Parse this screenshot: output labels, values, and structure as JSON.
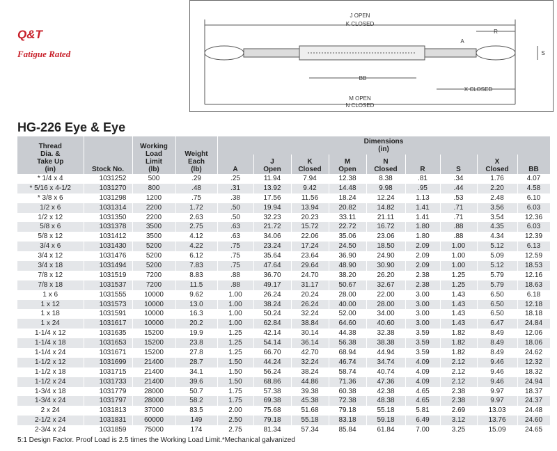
{
  "logo": {
    "brand": "Q&T",
    "tagline": "Fatigue Rated"
  },
  "diagram": {
    "labels": [
      "J OPEN",
      "K CLOSED",
      "R",
      "A",
      "S",
      "BB",
      "X CLOSED",
      "M OPEN",
      "N CLOSED"
    ]
  },
  "title": "HG-226 Eye & Eye",
  "table": {
    "group": [
      "Dimensions",
      "(in)"
    ],
    "columns": [
      [
        "Thread",
        "Dia. &",
        "Take Up",
        "(in)"
      ],
      [
        "Stock No."
      ],
      [
        "Working",
        "Load",
        "Limit",
        "(lb)"
      ],
      [
        "Weight",
        "Each",
        "(lb)"
      ],
      [
        "A"
      ],
      [
        "J",
        "Open"
      ],
      [
        "K",
        "Closed"
      ],
      [
        "M",
        "Open"
      ],
      [
        "N",
        "Closed"
      ],
      [
        "R"
      ],
      [
        "S"
      ],
      [
        "X",
        "Closed"
      ],
      [
        "BB"
      ]
    ],
    "rows": [
      [
        "* 1/4 x 4",
        "1031252",
        "500",
        ".29",
        ".25",
        "11.94",
        "7.94",
        "12.38",
        "8.38",
        ".81",
        ".34",
        "1.76",
        "4.07"
      ],
      [
        "* 5/16 x 4-1/2",
        "1031270",
        "800",
        ".48",
        ".31",
        "13.92",
        "9.42",
        "14.48",
        "9.98",
        ".95",
        ".44",
        "2.20",
        "4.58"
      ],
      [
        "* 3/8 x 6",
        "1031298",
        "1200",
        ".75",
        ".38",
        "17.56",
        "11.56",
        "18.24",
        "12.24",
        "1.13",
        ".53",
        "2.48",
        "6.10"
      ],
      [
        "1/2 x 6",
        "1031314",
        "2200",
        "1.72",
        ".50",
        "19.94",
        "13.94",
        "20.82",
        "14.82",
        "1.41",
        ".71",
        "3.56",
        "6.03"
      ],
      [
        "1/2 x 12",
        "1031350",
        "2200",
        "2.63",
        ".50",
        "32.23",
        "20.23",
        "33.11",
        "21.11",
        "1.41",
        ".71",
        "3.54",
        "12.36"
      ],
      [
        "5/8 x 6",
        "1031378",
        "3500",
        "2.75",
        ".63",
        "21.72",
        "15.72",
        "22.72",
        "16.72",
        "1.80",
        ".88",
        "4.35",
        "6.03"
      ],
      [
        "5/8 x 12",
        "1031412",
        "3500",
        "4.12",
        ".63",
        "34.06",
        "22.06",
        "35.06",
        "23.06",
        "1.80",
        ".88",
        "4.34",
        "12.39"
      ],
      [
        "3/4 x 6",
        "1031430",
        "5200",
        "4.22",
        ".75",
        "23.24",
        "17.24",
        "24.50",
        "18.50",
        "2.09",
        "1.00",
        "5.12",
        "6.13"
      ],
      [
        "3/4 x 12",
        "1031476",
        "5200",
        "6.12",
        ".75",
        "35.64",
        "23.64",
        "36.90",
        "24.90",
        "2.09",
        "1.00",
        "5.09",
        "12.59"
      ],
      [
        "3/4 x 18",
        "1031494",
        "5200",
        "7.83",
        ".75",
        "47.64",
        "29.64",
        "48.90",
        "30.90",
        "2.09",
        "1.00",
        "5.12",
        "18.53"
      ],
      [
        "7/8 x 12",
        "1031519",
        "7200",
        "8.83",
        ".88",
        "36.70",
        "24.70",
        "38.20",
        "26.20",
        "2.38",
        "1.25",
        "5.79",
        "12.16"
      ],
      [
        "7/8 x 18",
        "1031537",
        "7200",
        "11.5",
        ".88",
        "49.17",
        "31.17",
        "50.67",
        "32.67",
        "2.38",
        "1.25",
        "5.79",
        "18.63"
      ],
      [
        "1 x 6",
        "1031555",
        "10000",
        "9.62",
        "1.00",
        "26.24",
        "20.24",
        "28.00",
        "22.00",
        "3.00",
        "1.43",
        "6.50",
        "6.18"
      ],
      [
        "1 x 12",
        "1031573",
        "10000",
        "13.0",
        "1.00",
        "38.24",
        "26.24",
        "40.00",
        "28.00",
        "3.00",
        "1.43",
        "6.50",
        "12.18"
      ],
      [
        "1 x 18",
        "1031591",
        "10000",
        "16.3",
        "1.00",
        "50.24",
        "32.24",
        "52.00",
        "34.00",
        "3.00",
        "1.43",
        "6.50",
        "18.18"
      ],
      [
        "1 x 24",
        "1031617",
        "10000",
        "20.2",
        "1.00",
        "62.84",
        "38.84",
        "64.60",
        "40.60",
        "3.00",
        "1.43",
        "6.47",
        "24.84"
      ],
      [
        "1-1/4 x 12",
        "1031635",
        "15200",
        "19.9",
        "1.25",
        "42.14",
        "30.14",
        "44.38",
        "32.38",
        "3.59",
        "1.82",
        "8.49",
        "12.06"
      ],
      [
        "1-1/4 x 18",
        "1031653",
        "15200",
        "23.8",
        "1.25",
        "54.14",
        "36.14",
        "56.38",
        "38.38",
        "3.59",
        "1.82",
        "8.49",
        "18.06"
      ],
      [
        "1-1/4 x 24",
        "1031671",
        "15200",
        "27.8",
        "1.25",
        "66.70",
        "42.70",
        "68.94",
        "44.94",
        "3.59",
        "1.82",
        "8.49",
        "24.62"
      ],
      [
        "1-1/2 x 12",
        "1031699",
        "21400",
        "28.7",
        "1.50",
        "44.24",
        "32.24",
        "46.74",
        "34.74",
        "4.09",
        "2.12",
        "9.46",
        "12.32"
      ],
      [
        "1-1/2 x 18",
        "1031715",
        "21400",
        "34.1",
        "1.50",
        "56.24",
        "38.24",
        "58.74",
        "40.74",
        "4.09",
        "2.12",
        "9.46",
        "18.32"
      ],
      [
        "1-1/2 x 24",
        "1031733",
        "21400",
        "39.6",
        "1.50",
        "68.86",
        "44.86",
        "71.36",
        "47.36",
        "4.09",
        "2.12",
        "9.46",
        "24.94"
      ],
      [
        "1-3/4 x 18",
        "1031779",
        "28000",
        "50.7",
        "1.75",
        "57.38",
        "39.38",
        "60.38",
        "42.38",
        "4.65",
        "2.38",
        "9.97",
        "18.37"
      ],
      [
        "1-3/4 x 24",
        "1031797",
        "28000",
        "58.2",
        "1.75",
        "69.38",
        "45.38",
        "72.38",
        "48.38",
        "4.65",
        "2.38",
        "9.97",
        "24.37"
      ],
      [
        "2 x 24",
        "1031813",
        "37000",
        "83.5",
        "2.00",
        "75.68",
        "51.68",
        "79.18",
        "55.18",
        "5.81",
        "2.69",
        "13.03",
        "24.48"
      ],
      [
        "2-1/2 x 24",
        "1031831",
        "60000",
        "149",
        "2.50",
        "79.18",
        "55.18",
        "83.18",
        "59.18",
        "6.49",
        "3.12",
        "13.76",
        "24.60"
      ],
      [
        "2-3/4 x 24",
        "1031859",
        "75000",
        "174",
        "2.75",
        "81.34",
        "57.34",
        "85.84",
        "61.84",
        "7.00",
        "3.25",
        "15.09",
        "24.65"
      ]
    ]
  },
  "footnote": "5:1 Design Factor.  Proof Load is 2.5 times the Working Load Limit.*Mechanical galvanized"
}
